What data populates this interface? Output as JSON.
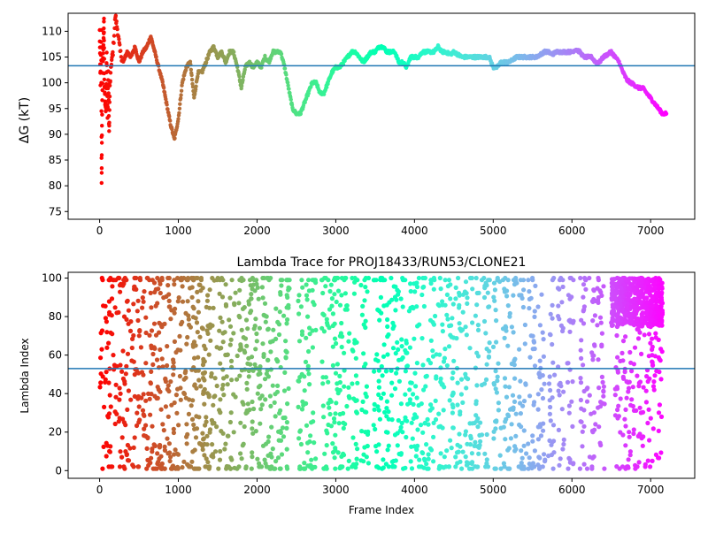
{
  "chart_data": [
    {
      "type": "scatter",
      "title": "",
      "xlabel": "",
      "ylabel": "ΔG (kT)",
      "xlim": [
        -400,
        7560
      ],
      "ylim": [
        73.5,
        113.5
      ],
      "xticks": [
        0,
        1000,
        2000,
        3000,
        4000,
        5000,
        6000,
        7000
      ],
      "yticks": [
        75,
        80,
        85,
        90,
        95,
        100,
        105,
        110
      ],
      "hline": 103.3,
      "hline_color": "#1f77b4",
      "colormap": "rainbow",
      "color_direction": "red at frame 0 to violet at final frame",
      "x_max_frame": 7200,
      "grid": false,
      "series": [
        {
          "points": [
            [
              0,
              110
            ],
            [
              10,
              100
            ],
            [
              20,
              109.8
            ],
            [
              25,
              80
            ],
            [
              30,
              92
            ],
            [
              40,
              104
            ],
            [
              50,
              108
            ],
            [
              55,
              112
            ],
            [
              60,
              100.5
            ],
            [
              70,
              96
            ],
            [
              80,
              95
            ],
            [
              90,
              106
            ],
            [
              100,
              93
            ],
            [
              110,
              102
            ],
            [
              120,
              90
            ],
            [
              130,
              99
            ],
            [
              150,
              104
            ],
            [
              170,
              106
            ],
            [
              200,
              113
            ],
            [
              230,
              110
            ],
            [
              260,
              106
            ],
            [
              300,
              104
            ],
            [
              350,
              106
            ],
            [
              400,
              105
            ],
            [
              450,
              107
            ],
            [
              500,
              104
            ],
            [
              550,
              106
            ],
            [
              600,
              107
            ],
            [
              650,
              109
            ],
            [
              700,
              106
            ],
            [
              750,
              103
            ],
            [
              800,
              100
            ],
            [
              850,
              96
            ],
            [
              900,
              92
            ],
            [
              950,
              89
            ],
            [
              1000,
              93
            ],
            [
              1050,
              100
            ],
            [
              1100,
              103
            ],
            [
              1150,
              104
            ],
            [
              1200,
              97
            ],
            [
              1250,
              102
            ],
            [
              1300,
              102
            ],
            [
              1350,
              104
            ],
            [
              1400,
              106
            ],
            [
              1450,
              107
            ],
            [
              1500,
              105
            ],
            [
              1550,
              106
            ],
            [
              1600,
              104
            ],
            [
              1650,
              106
            ],
            [
              1700,
              106
            ],
            [
              1750,
              103
            ],
            [
              1800,
              99
            ],
            [
              1850,
              103
            ],
            [
              1900,
              104
            ],
            [
              1950,
              103
            ],
            [
              2000,
              104
            ],
            [
              2050,
              103
            ],
            [
              2100,
              105
            ],
            [
              2150,
              104
            ],
            [
              2200,
              106
            ],
            [
              2250,
              106
            ],
            [
              2300,
              106
            ],
            [
              2350,
              103
            ],
            [
              2400,
              99
            ],
            [
              2450,
              95
            ],
            [
              2500,
              94
            ],
            [
              2550,
              94
            ],
            [
              2600,
              96
            ],
            [
              2650,
              98
            ],
            [
              2700,
              100
            ],
            [
              2750,
              100
            ],
            [
              2800,
              98
            ],
            [
              2850,
              98
            ],
            [
              2900,
              100
            ],
            [
              2950,
              102
            ],
            [
              3000,
              103
            ],
            [
              3050,
              103
            ],
            [
              3100,
              104
            ],
            [
              3150,
              105
            ],
            [
              3200,
              106
            ],
            [
              3250,
              106
            ],
            [
              3300,
              105
            ],
            [
              3350,
              104
            ],
            [
              3400,
              105
            ],
            [
              3450,
              106
            ],
            [
              3500,
              106
            ],
            [
              3550,
              107
            ],
            [
              3600,
              107
            ],
            [
              3650,
              106
            ],
            [
              3700,
              106
            ],
            [
              3750,
              106
            ],
            [
              3800,
              104
            ],
            [
              3850,
              104
            ],
            [
              3900,
              103
            ],
            [
              3950,
              105
            ],
            [
              4000,
              105
            ],
            [
              4050,
              105
            ],
            [
              4100,
              106
            ],
            [
              4150,
              106
            ],
            [
              4200,
              106
            ],
            [
              4250,
              106
            ],
            [
              4300,
              107
            ],
            [
              4350,
              106
            ],
            [
              4400,
              106
            ],
            [
              4450,
              105.5
            ],
            [
              4500,
              106
            ],
            [
              4550,
              105.5
            ],
            [
              4600,
              105
            ],
            [
              4650,
              105
            ],
            [
              4700,
              105
            ],
            [
              4750,
              105
            ],
            [
              4800,
              105
            ],
            [
              4850,
              105
            ],
            [
              4900,
              105
            ],
            [
              4950,
              105
            ],
            [
              5000,
              103
            ],
            [
              5050,
              103
            ],
            [
              5100,
              104
            ],
            [
              5150,
              104
            ],
            [
              5200,
              104
            ],
            [
              5250,
              104.5
            ],
            [
              5300,
              105
            ],
            [
              5350,
              105
            ],
            [
              5400,
              105
            ],
            [
              5450,
              105
            ],
            [
              5500,
              105
            ],
            [
              5550,
              105
            ],
            [
              5600,
              105.5
            ],
            [
              5650,
              106
            ],
            [
              5700,
              106
            ],
            [
              5750,
              105.5
            ],
            [
              5800,
              106
            ],
            [
              5850,
              106
            ],
            [
              5900,
              106
            ],
            [
              5950,
              106
            ],
            [
              6000,
              106
            ],
            [
              6050,
              106.5
            ],
            [
              6100,
              106
            ],
            [
              6150,
              105
            ],
            [
              6200,
              105
            ],
            [
              6250,
              105
            ],
            [
              6300,
              104
            ],
            [
              6350,
              104
            ],
            [
              6400,
              105
            ],
            [
              6450,
              105.5
            ],
            [
              6500,
              106
            ],
            [
              6550,
              105
            ],
            [
              6600,
              104
            ],
            [
              6650,
              102
            ],
            [
              6700,
              100.5
            ],
            [
              6750,
              100
            ],
            [
              6800,
              99.5
            ],
            [
              6850,
              99
            ],
            [
              6900,
              99
            ],
            [
              6950,
              98
            ],
            [
              7000,
              97
            ],
            [
              7050,
              96
            ],
            [
              7100,
              95
            ],
            [
              7150,
              94
            ],
            [
              7200,
              94
            ]
          ]
        }
      ]
    },
    {
      "type": "scatter",
      "title": "Lambda Trace for PROJ18433/RUN53/CLONE21",
      "xlabel": "Frame Index",
      "ylabel": "Lambda Index",
      "xlim": [
        -400,
        7560
      ],
      "ylim": [
        -4,
        103
      ],
      "xticks": [
        0,
        1000,
        2000,
        3000,
        4000,
        5000,
        6000,
        7000
      ],
      "yticks": [
        0,
        20,
        40,
        60,
        80,
        100
      ],
      "hline": 53,
      "hline_color": "#1f77b4",
      "colormap": "rainbow",
      "color_direction": "red at frame 0 to violet at final frame",
      "x_max_frame": 7200,
      "grid": false,
      "band_segments": [
        [
          0,
          1000
        ],
        [
          1000,
          1200
        ],
        [
          1200,
          1900
        ],
        [
          1900,
          2100
        ],
        [
          2100,
          2300
        ],
        [
          2300,
          2420
        ],
        [
          2520,
          2620
        ],
        [
          2620,
          2750
        ],
        [
          2820,
          2900
        ],
        [
          2900,
          3050
        ],
        [
          3050,
          3180
        ],
        [
          3200,
          3280
        ],
        [
          3320,
          3420
        ],
        [
          3480,
          3580
        ],
        [
          3580,
          3680
        ],
        [
          3700,
          3780
        ],
        [
          3780,
          3860
        ],
        [
          3880,
          3960
        ],
        [
          3960,
          4060
        ],
        [
          4080,
          4180
        ],
        [
          4200,
          4280
        ],
        [
          4300,
          4400
        ],
        [
          4400,
          4500
        ],
        [
          4520,
          4620
        ],
        [
          4640,
          4740
        ],
        [
          4760,
          4860
        ],
        [
          4880,
          4960
        ],
        [
          5000,
          5100
        ],
        [
          5120,
          5200
        ],
        [
          5200,
          5300
        ],
        [
          5320,
          5420
        ],
        [
          5440,
          5540
        ],
        [
          5560,
          5660
        ],
        [
          5700,
          5780
        ],
        [
          5820,
          5900
        ],
        [
          5940,
          6020
        ],
        [
          6100,
          6200
        ],
        [
          6220,
          6300
        ],
        [
          6320,
          6420
        ],
        [
          6550,
          7150
        ]
      ],
      "dense_high_region": [
        6500,
        7150,
        75,
        100
      ],
      "notes": ""
    }
  ],
  "figure": {
    "subplot1_ylabel": "ΔG (kT)",
    "subplot2_ylabel": "Lambda Index",
    "subplot2_title": "Lambda Trace for PROJ18433/RUN53/CLONE21",
    "subplot2_xlabel": "Frame Index"
  }
}
